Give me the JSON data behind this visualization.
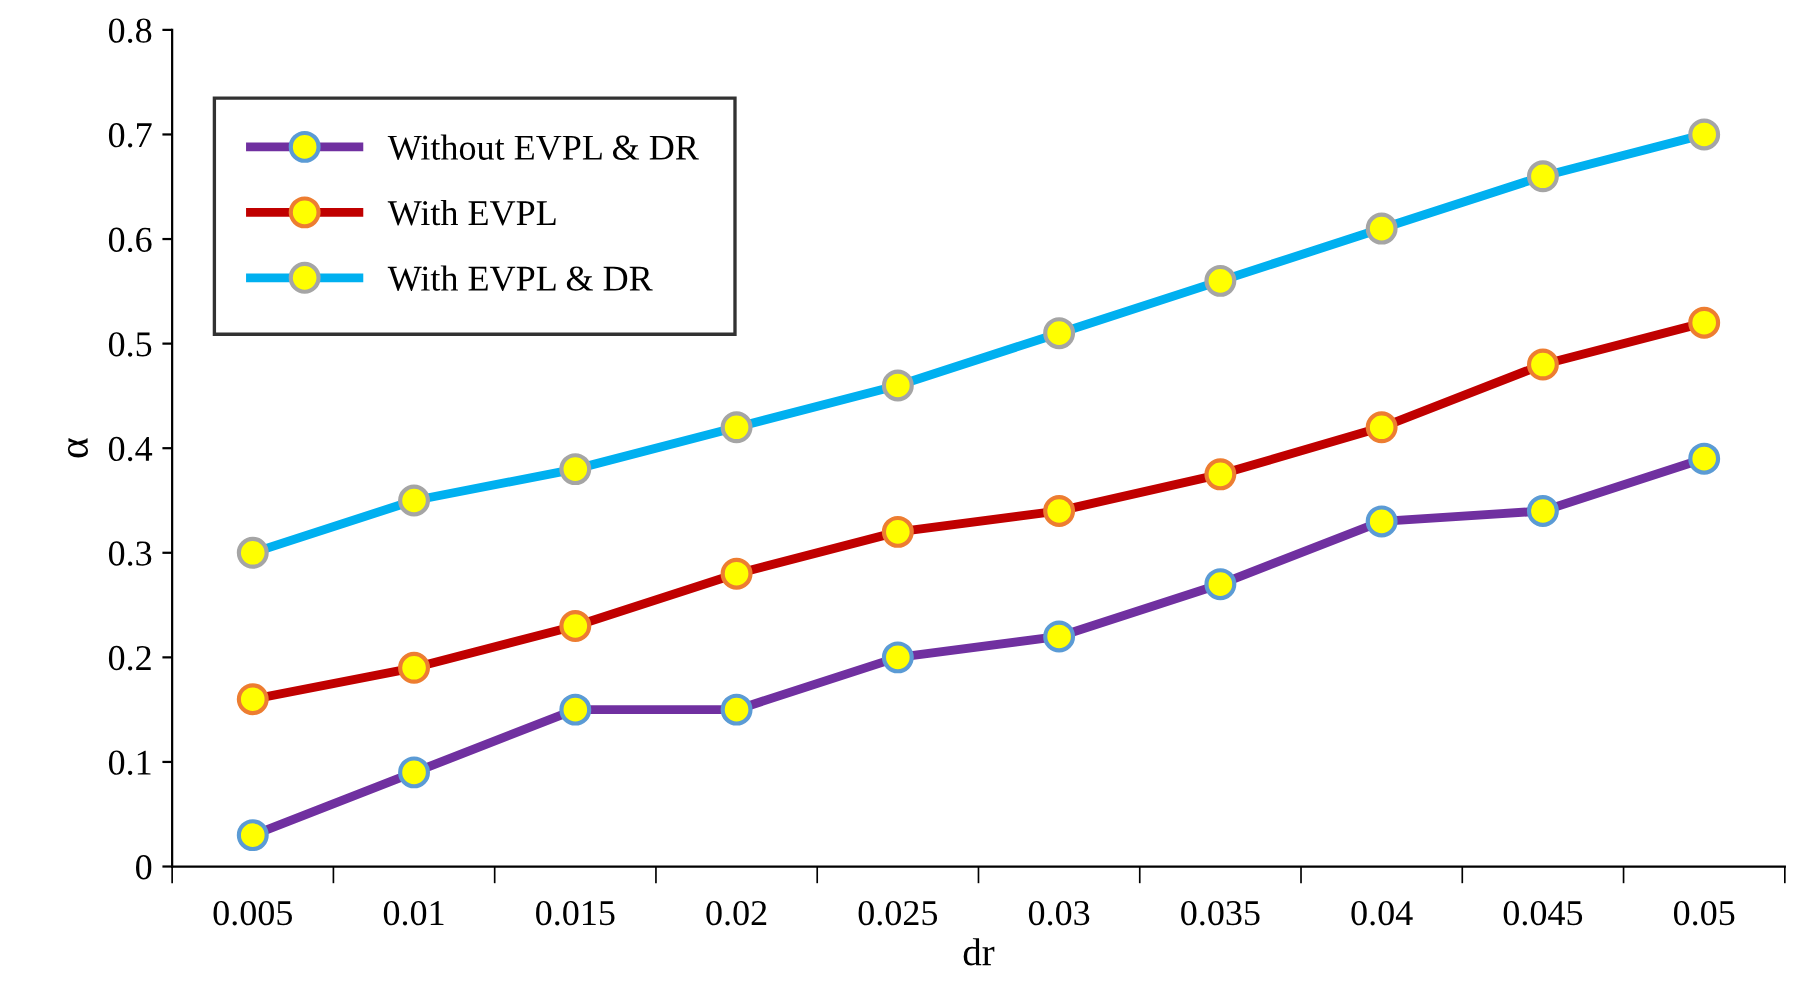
{
  "chart_data": {
    "type": "line",
    "xlabel": "dr",
    "ylabel": "α",
    "categories": [
      "0.005",
      "0.01",
      "0.015",
      "0.02",
      "0.025",
      "0.03",
      "0.035",
      "0.04",
      "0.045",
      "0.05"
    ],
    "series": [
      {
        "name": "Without EVPL & DR",
        "color": "#7030a0",
        "values": [
          0.03,
          0.09,
          0.15,
          0.15,
          0.2,
          0.22,
          0.27,
          0.33,
          0.34,
          0.39
        ]
      },
      {
        "name": "With EVPL",
        "color": "#c00000",
        "values": [
          0.16,
          0.19,
          0.23,
          0.28,
          0.32,
          0.34,
          0.375,
          0.42,
          0.48,
          0.52
        ]
      },
      {
        "name": "With EVPL & DR",
        "color": "#00b0f0",
        "values": [
          0.3,
          0.35,
          0.38,
          0.42,
          0.46,
          0.51,
          0.56,
          0.61,
          0.66,
          0.7
        ]
      }
    ],
    "ylim": [
      0,
      0.8
    ],
    "yticks": [
      0,
      0.1,
      0.2,
      0.3,
      0.4,
      0.5,
      0.6,
      0.7,
      0.8
    ],
    "grid": false,
    "legend": "top left",
    "marker": "circle",
    "line_style": "solid"
  }
}
